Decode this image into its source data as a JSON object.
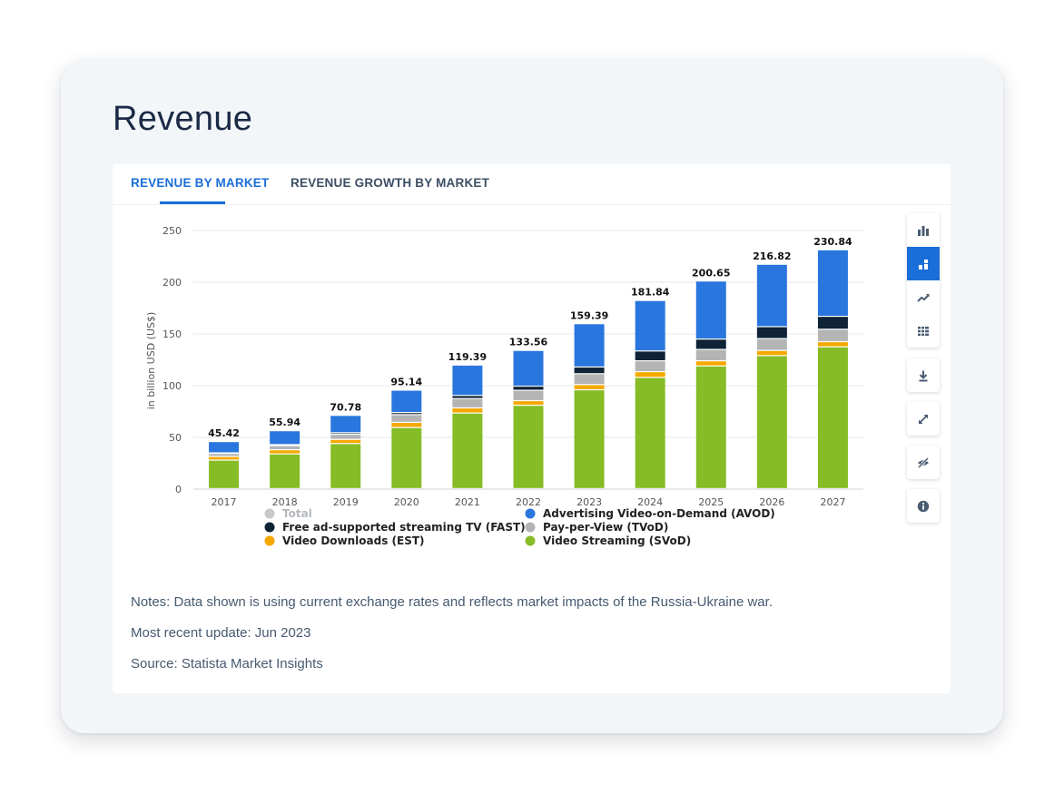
{
  "page": {
    "title": "Revenue"
  },
  "tabs": [
    {
      "label": "REVENUE BY MARKET",
      "active": true
    },
    {
      "label": "REVENUE GROWTH BY MARKET",
      "active": false
    }
  ],
  "toolbar": [
    {
      "icon": "bar-chart-icon",
      "active": false
    },
    {
      "icon": "stacked-bar-icon",
      "active": true
    },
    {
      "icon": "trend-line-icon",
      "active": false
    },
    {
      "icon": "table-grid-icon",
      "active": false
    },
    {
      "icon": "download-icon",
      "active": false
    },
    {
      "icon": "expand-icon",
      "active": false
    },
    {
      "icon": "hide-icon",
      "active": false
    },
    {
      "icon": "info-icon",
      "active": false
    }
  ],
  "notes": {
    "note": "Notes: Data shown is using current exchange rates and reflects market impacts of the Russia-Ukraine war.",
    "update": "Most recent update: Jun 2023",
    "source": "Source: Statista Market Insights"
  },
  "chart_data": {
    "type": "bar",
    "stacked": true,
    "title": "",
    "xlabel": "",
    "ylabel": "in billion USD (US$)",
    "ylim": [
      0,
      250
    ],
    "yticks": [
      0,
      50,
      100,
      150,
      200,
      250
    ],
    "grid": true,
    "legend_position": "bottom",
    "categories": [
      "2017",
      "2018",
      "2019",
      "2020",
      "2021",
      "2022",
      "2023",
      "2024",
      "2025",
      "2026",
      "2027"
    ],
    "totals": [
      45.42,
      55.94,
      70.78,
      95.14,
      119.39,
      133.56,
      159.39,
      181.84,
      200.65,
      216.82,
      230.84
    ],
    "series": [
      {
        "name": "Video Streaming (SVoD)",
        "color": "#86bc25",
        "values": [
          27.5,
          33.5,
          43.5,
          59.0,
          73.0,
          80.5,
          95.5,
          107.5,
          118.5,
          128.5,
          137.0
        ]
      },
      {
        "name": "Video Downloads (EST)",
        "color": "#f5a800",
        "values": [
          3.5,
          4.0,
          4.0,
          5.0,
          5.0,
          4.5,
          5.0,
          5.5,
          5.0,
          5.0,
          5.0
        ]
      },
      {
        "name": "Pay-per-View (TVoD)",
        "color": "#b4b4b4",
        "values": [
          3.0,
          4.0,
          5.0,
          7.5,
          9.0,
          10.0,
          10.5,
          10.5,
          11.0,
          11.5,
          12.0
        ]
      },
      {
        "name": "Free ad-supported streaming TV (FAST)",
        "color": "#0f2336",
        "values": [
          0.5,
          1.0,
          1.5,
          2.0,
          3.0,
          4.0,
          6.5,
          9.5,
          10.0,
          11.5,
          12.5
        ]
      },
      {
        "name": "Advertising Video-on-Demand (AVOD)",
        "color": "#2976de",
        "values": [
          10.92,
          13.44,
          16.78,
          21.64,
          29.39,
          34.56,
          41.89,
          48.84,
          56.15,
          60.32,
          64.34
        ]
      }
    ],
    "legend": [
      {
        "name": "Total",
        "color": "#c9c9c9",
        "disabled": true
      },
      {
        "name": "Advertising Video-on-Demand (AVOD)",
        "color": "#2976de",
        "disabled": false
      },
      {
        "name": "Free ad-supported streaming TV (FAST)",
        "color": "#0f2336",
        "disabled": false
      },
      {
        "name": "Pay-per-View (TVoD)",
        "color": "#b4b4b4",
        "disabled": false
      },
      {
        "name": "Video Downloads (EST)",
        "color": "#f5a800",
        "disabled": false
      },
      {
        "name": "Video Streaming (SVoD)",
        "color": "#86bc25",
        "disabled": false
      }
    ]
  }
}
